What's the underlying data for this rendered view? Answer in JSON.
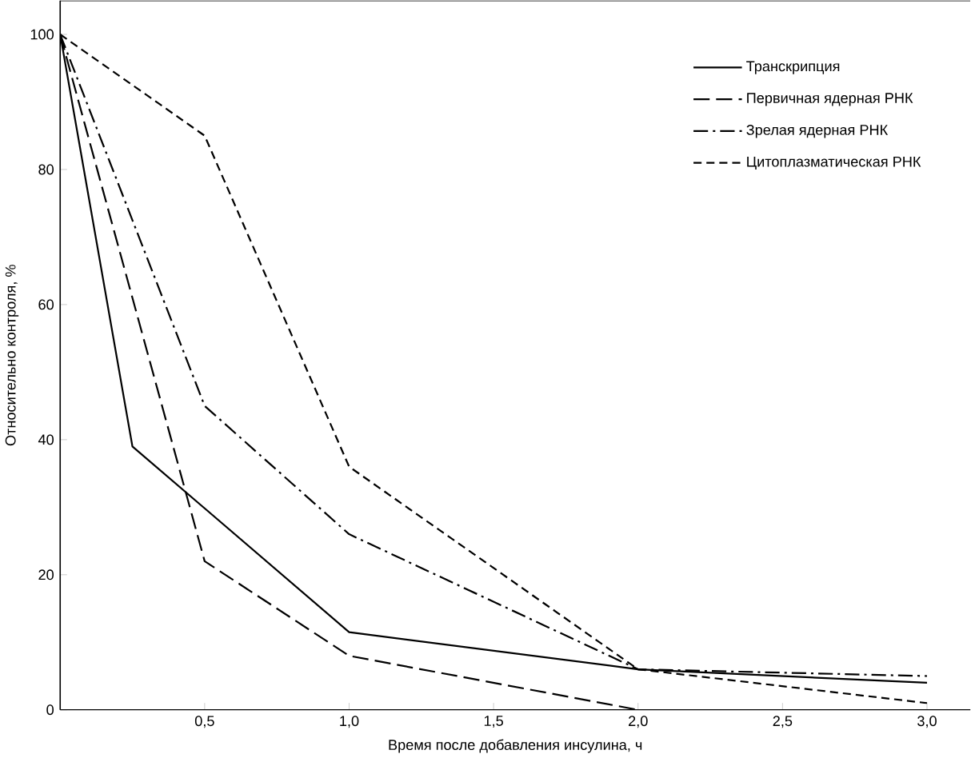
{
  "chart_data": {
    "type": "line",
    "xlabel": "Время после добавления инсулина, ч",
    "ylabel": "Относительно контроля, %",
    "xlim": [
      0,
      3.15
    ],
    "ylim": [
      0,
      105
    ],
    "xticks": [
      {
        "value": 0.5,
        "label": "0,5"
      },
      {
        "value": 1.0,
        "label": "1,0"
      },
      {
        "value": 1.5,
        "label": "1,5"
      },
      {
        "value": 2.0,
        "label": "2,0"
      },
      {
        "value": 2.5,
        "label": "2,5"
      },
      {
        "value": 3.0,
        "label": "3,0"
      }
    ],
    "yticks": [
      0,
      20,
      40,
      60,
      80,
      100
    ],
    "legend": "top right",
    "grid": false,
    "marker": "none",
    "series": [
      {
        "name": "Транскрипция",
        "color": "#000000",
        "line_style": "solid",
        "x": [
          0,
          0.25,
          1.0,
          2.0,
          3.0
        ],
        "values": [
          100,
          39,
          11.5,
          6,
          4
        ]
      },
      {
        "name": "Первичная ядерная РНК",
        "color": "#000000",
        "line_style": "long dashed",
        "x": [
          0,
          0.5,
          1.0,
          2.0
        ],
        "values": [
          100,
          22,
          8,
          0
        ]
      },
      {
        "name": "Зрелая ядерная РНК",
        "color": "#000000",
        "line_style": "dash dot",
        "x": [
          0,
          0.5,
          1.0,
          2.0,
          3.0
        ],
        "values": [
          100,
          45,
          26,
          6,
          5
        ]
      },
      {
        "name": "Цитоплазматическая РНК",
        "color": "#000000",
        "line_style": "dashed",
        "x": [
          0,
          0.5,
          1.0,
          2.0,
          3.0
        ],
        "values": [
          100,
          85,
          36,
          6,
          1
        ]
      }
    ]
  }
}
